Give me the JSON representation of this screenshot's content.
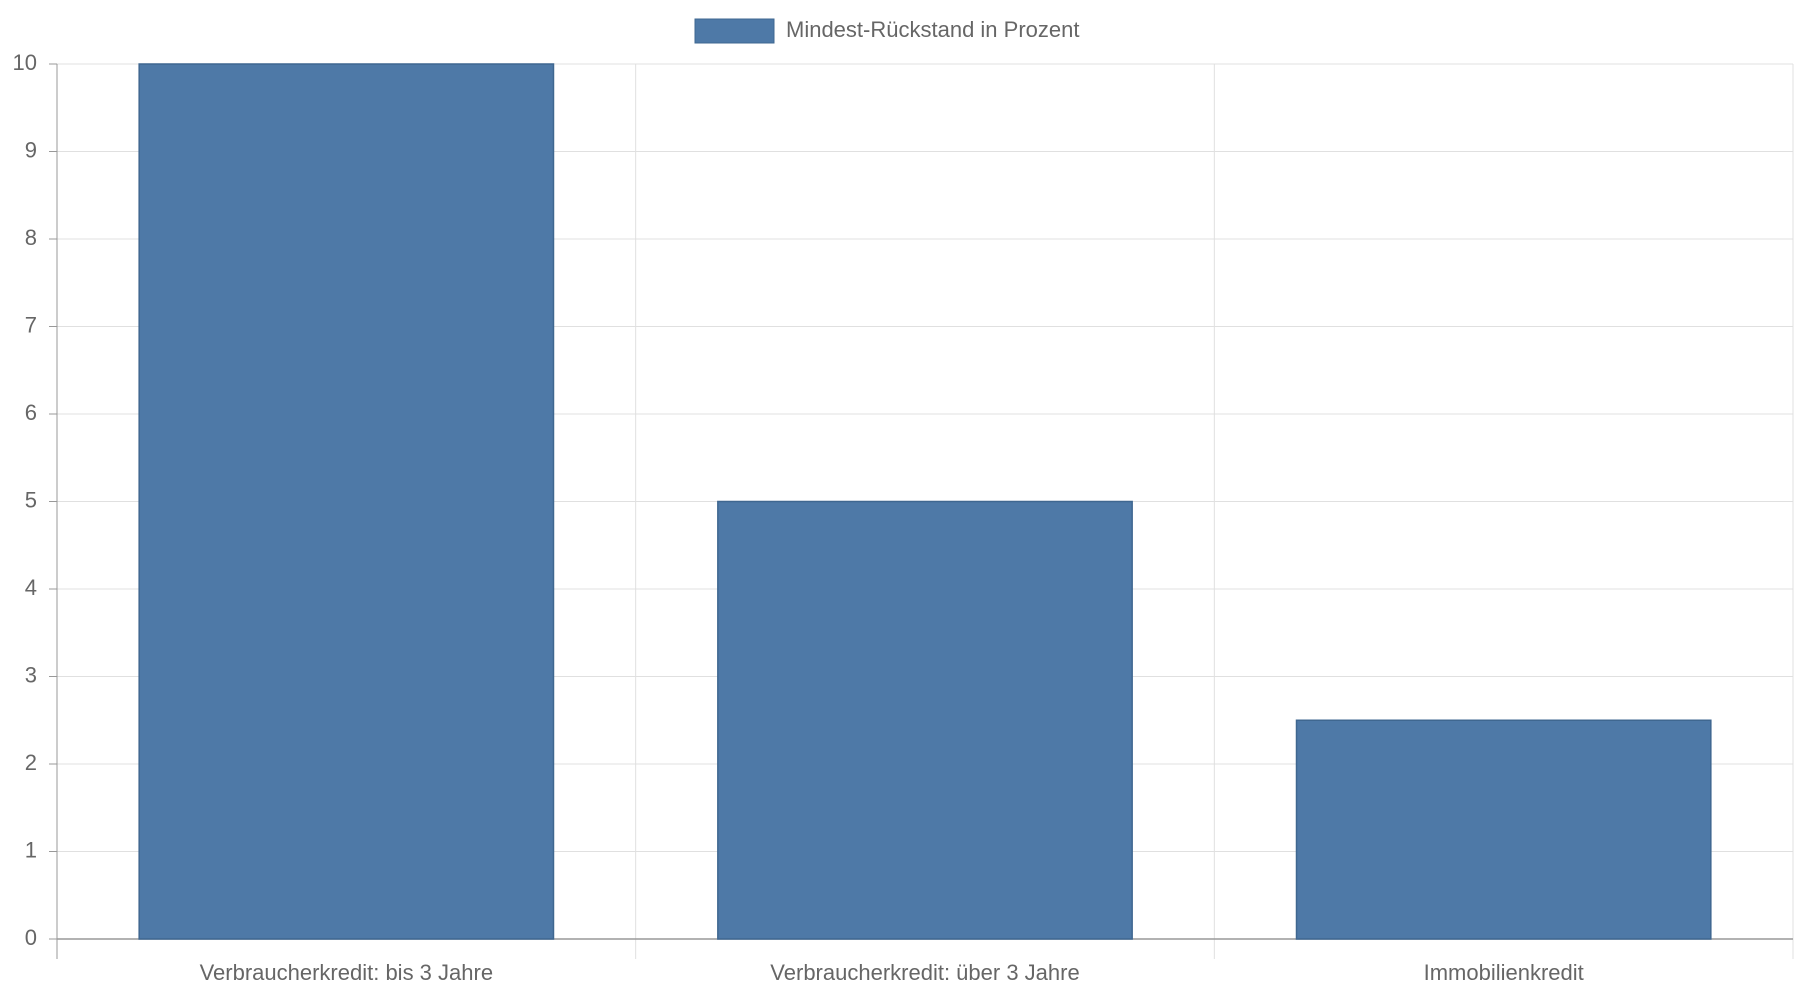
{
  "chart_data": {
    "type": "bar",
    "categories": [
      "Verbraucherkredit: bis 3 Jahre",
      "Verbraucherkredit: über 3 Jahre",
      "Immobilienkredit"
    ],
    "series": [
      {
        "name": "Mindest-Rückstand in Prozent",
        "color": "#4e79a7",
        "values": [
          10,
          5,
          2.5
        ]
      }
    ],
    "ylim": [
      0,
      10
    ],
    "yticks": [
      0,
      1,
      2,
      3,
      4,
      5,
      6,
      7,
      8,
      9,
      10
    ],
    "grid": true,
    "legend": "top"
  }
}
